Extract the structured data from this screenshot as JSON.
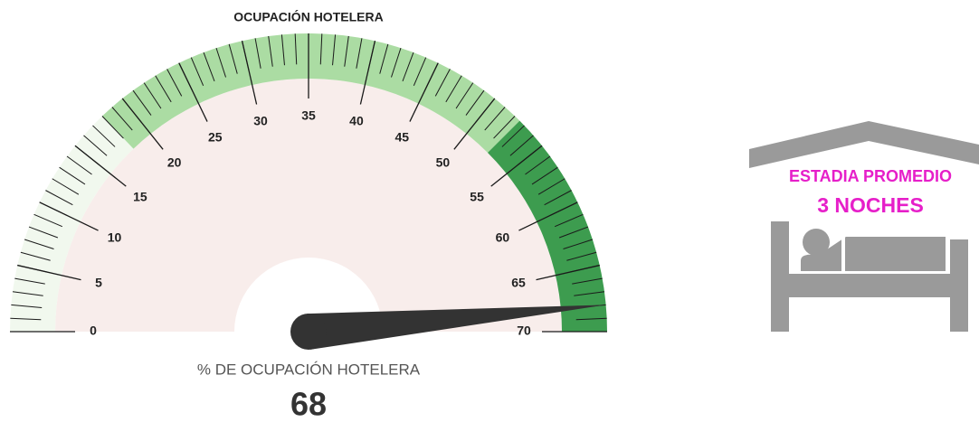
{
  "chart_data": {
    "type": "gauge",
    "title": "OCUPACIÓN HOTELERA",
    "label": "% DE OCUPACIÓN HOTELERA",
    "value": 68,
    "ylim": [
      0,
      70
    ],
    "yticks": [
      0,
      5,
      10,
      15,
      20,
      25,
      30,
      35,
      40,
      45,
      50,
      55,
      60,
      65,
      70
    ],
    "minor_tick_interval": 1,
    "bands": [
      {
        "from": 0,
        "to": 18,
        "color": "#f1f8ee"
      },
      {
        "from": 18,
        "to": 52.5,
        "color": "#abdca3"
      },
      {
        "from": 52.5,
        "to": 70,
        "color": "#3d9c4f"
      }
    ],
    "needle_color": "#333333"
  },
  "sidebar": {
    "title": "ESTADIA PROMEDIO",
    "value": "3 NOCHES"
  }
}
